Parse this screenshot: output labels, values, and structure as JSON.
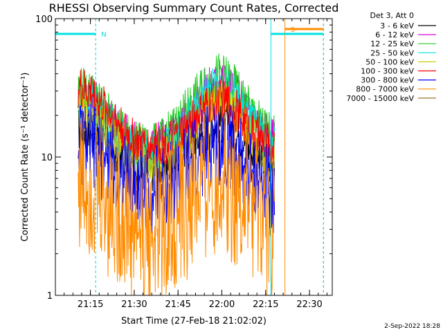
{
  "chart_data": {
    "type": "line",
    "title": "RHESSI Observing Summary Count Rates, Corrected",
    "xlabel": "Start Time (27-Feb-18 21:02:02)",
    "ylabel": "Corrected Count Rate (s⁻¹ detector⁻¹)",
    "y_scale": "log",
    "ylim": [
      1,
      100
    ],
    "yticks": [
      "1",
      "10",
      "100"
    ],
    "x_unit": "minutes",
    "xlim": [
      21.05,
      22.63
    ],
    "xticks": [
      {
        "at": 21.25,
        "label": "21:15"
      },
      {
        "at": 21.5,
        "label": "21:30"
      },
      {
        "at": 21.75,
        "label": "21:45"
      },
      {
        "at": 22.0,
        "label": "22:00"
      },
      {
        "at": 22.25,
        "label": "22:15"
      },
      {
        "at": 22.5,
        "label": "22:30"
      }
    ],
    "legend_header": "Det 3, Att 0",
    "legend_placement": "outside-right",
    "series": [
      {
        "name": "3 - 6 keV",
        "color": "#000000",
        "x": [
          21.18,
          21.25,
          21.3,
          21.35,
          21.4,
          21.45,
          21.5,
          21.55,
          21.6,
          21.65,
          21.7,
          21.75,
          21.8,
          21.85,
          21.9,
          21.95,
          22.0,
          22.05,
          22.1,
          22.15,
          22.2,
          22.25,
          22.3
        ],
        "y": [
          16,
          15,
          13,
          12,
          10.5,
          9.5,
          8.5,
          8,
          8,
          8.5,
          9,
          10,
          11,
          13,
          15,
          17,
          18,
          16,
          14,
          12,
          10,
          9,
          8.5
        ]
      },
      {
        "name": "6 - 12 keV",
        "color": "#dd00dd",
        "x": [
          21.18,
          21.25,
          21.3,
          21.35,
          21.4,
          21.45,
          21.5,
          21.55,
          21.6,
          21.65,
          21.7,
          21.75,
          21.8,
          21.85,
          21.9,
          21.95,
          22.0,
          22.05,
          22.1,
          22.15,
          22.2,
          22.25,
          22.3
        ],
        "y": [
          30,
          28,
          24,
          20,
          17,
          15,
          13,
          12,
          12,
          13,
          14,
          16,
          20,
          25,
          30,
          34,
          36,
          32,
          27,
          22,
          18,
          15,
          13
        ]
      },
      {
        "name": "12 - 25 keV",
        "color": "#22cc22",
        "x": [
          21.18,
          21.25,
          21.3,
          21.35,
          21.4,
          21.45,
          21.5,
          21.55,
          21.6,
          21.65,
          21.7,
          21.75,
          21.8,
          21.85,
          21.9,
          21.95,
          22.0,
          22.05,
          22.1,
          22.15,
          22.2,
          22.25,
          22.3
        ],
        "y": [
          32,
          30,
          25,
          21,
          18,
          15,
          13,
          12,
          12,
          13,
          15,
          18,
          22,
          27,
          33,
          38,
          40,
          35,
          29,
          23,
          19,
          16,
          14
        ]
      },
      {
        "name": "25 - 50 keV",
        "color": "#00e0e0",
        "x": [
          21.18,
          21.25,
          21.3,
          21.35,
          21.4,
          21.45,
          21.5,
          21.55,
          21.6,
          21.65,
          21.7,
          21.75,
          21.8,
          21.85,
          21.9,
          21.95,
          22.0,
          22.05,
          22.1,
          22.15,
          22.2,
          22.25,
          22.3
        ],
        "y": [
          27,
          25,
          21,
          18,
          15,
          13,
          11.5,
          10.5,
          10.5,
          11,
          13,
          15,
          18,
          22,
          27,
          31,
          33,
          29,
          24,
          19,
          16,
          13,
          12
        ]
      },
      {
        "name": "50 - 100 keV",
        "color": "#cccc00",
        "x": [
          21.18,
          21.25,
          21.3,
          21.35,
          21.4,
          21.45,
          21.5,
          21.55,
          21.6,
          21.65,
          21.7,
          21.75,
          21.8,
          21.85,
          21.9,
          21.95,
          22.0,
          22.05,
          22.1,
          22.15,
          22.2,
          22.25,
          22.3
        ],
        "y": [
          23,
          21,
          18,
          15,
          13,
          11,
          9.5,
          9,
          9,
          9.5,
          10.5,
          12,
          14.5,
          18,
          21,
          24,
          25,
          22,
          18.5,
          15,
          12.5,
          10.5,
          9.5
        ]
      },
      {
        "name": "100 - 300 keV",
        "color": "#ff0000",
        "x": [
          21.18,
          21.25,
          21.3,
          21.35,
          21.4,
          21.45,
          21.5,
          21.55,
          21.6,
          21.65,
          21.7,
          21.75,
          21.8,
          21.85,
          21.9,
          21.95,
          22.0,
          22.05,
          22.1,
          22.15,
          22.2,
          22.25,
          22.3
        ],
        "y": [
          31,
          29,
          25,
          21,
          18,
          15,
          13,
          12,
          12,
          12.5,
          13,
          14,
          16,
          19,
          22,
          25,
          26,
          24,
          20,
          16.5,
          14,
          12.5,
          11.5
        ]
      },
      {
        "name": "300 - 800 keV",
        "color": "#0000ff",
        "x": [
          21.18,
          21.25,
          21.3,
          21.35,
          21.4,
          21.45,
          21.5,
          21.55,
          21.6,
          21.65,
          21.7,
          21.75,
          21.8,
          21.85,
          21.9,
          21.95,
          22.0,
          22.05,
          22.1,
          22.15,
          22.2,
          22.25,
          22.3
        ],
        "y": [
          13,
          12,
          10.5,
          9,
          8,
          7,
          6.2,
          5.8,
          5.8,
          6,
          6.5,
          7.2,
          8.2,
          9.6,
          11,
          12.5,
          13,
          11.5,
          9.8,
          8.2,
          7,
          6.2,
          5.6
        ]
      },
      {
        "name": "800 - 7000 keV",
        "color": "#ff8c00",
        "x": [
          21.18,
          21.25,
          21.3,
          21.35,
          21.4,
          21.45,
          21.5,
          21.55,
          21.6,
          21.65,
          21.7,
          21.75,
          21.8,
          21.85,
          21.9,
          21.95,
          22.0,
          22.05,
          22.1,
          22.15,
          22.2,
          22.25,
          22.3
        ],
        "y": [
          7,
          6.5,
          5.5,
          4.7,
          4,
          3.4,
          3,
          2.8,
          2.8,
          3,
          3.3,
          3.7,
          4.2,
          5,
          5.8,
          6.5,
          7,
          6.2,
          5.3,
          4.5,
          3.8,
          3.2,
          2.9
        ]
      },
      {
        "name": "7000 - 15000 keV",
        "color": "#8b6914",
        "x": [],
        "y": []
      }
    ],
    "annotations": [
      {
        "label": "N",
        "color": "#00e0e0",
        "from": 21.05,
        "to": 21.28
      },
      {
        "label": "S",
        "color": "#ff8c00",
        "from": 22.36,
        "to": 22.58
      },
      {
        "label": "",
        "color": "#00e0e0",
        "from": 22.28,
        "to": 22.58
      }
    ]
  },
  "footer_date": "2-Sep-2022 18:28"
}
